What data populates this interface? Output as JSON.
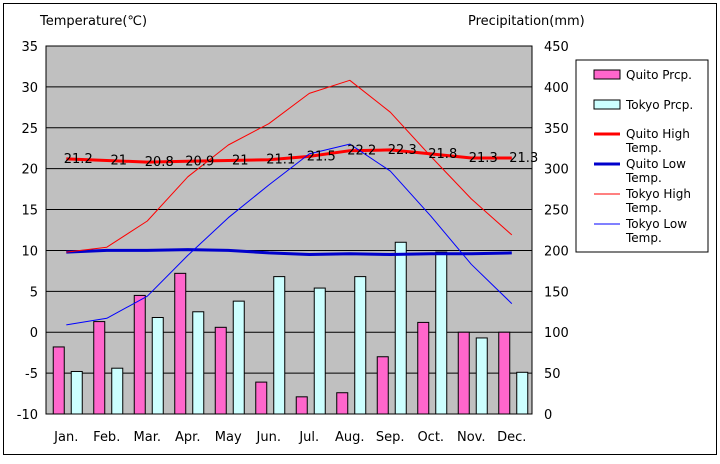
{
  "chart_data": {
    "type": "bar",
    "y_left_title": "Temperature(℃)",
    "y_right_title": "Precipitation(mm)",
    "categories": [
      "Jan.",
      "Feb.",
      "Mar.",
      "Apr.",
      "May",
      "Jun.",
      "Jul.",
      "Aug.",
      "Sep.",
      "Oct.",
      "Nov.",
      "Dec."
    ],
    "left_axis": {
      "ylim": [
        -10,
        35
      ],
      "ticks": [
        "-10",
        "-5",
        "0",
        "5",
        "10",
        "15",
        "20",
        "25",
        "30",
        "35"
      ]
    },
    "right_axis": {
      "ylim": [
        0,
        450
      ],
      "ticks": [
        "0",
        "50",
        "100",
        "150",
        "200",
        "250",
        "300",
        "350",
        "400",
        "450"
      ]
    },
    "grid": true,
    "legend_position": "right",
    "series": [
      {
        "name": "Quito Prcp.",
        "kind": "bar",
        "axis": "right",
        "color": "#ff66cc",
        "values": [
          82,
          113,
          145,
          172,
          106,
          39,
          21,
          26,
          70,
          112,
          100,
          100
        ]
      },
      {
        "name": "Tokyo Prcp.",
        "kind": "bar",
        "axis": "right",
        "color": "#ccffff",
        "values": [
          52,
          56,
          118,
          125,
          138,
          168,
          154,
          168,
          210,
          198,
          93,
          51
        ]
      },
      {
        "name": "Quito High Temp.",
        "kind": "line",
        "axis": "left",
        "color": "#ff0000",
        "width": "thick",
        "values": [
          21.2,
          21,
          20.8,
          20.9,
          21,
          21.1,
          21.5,
          22.2,
          22.3,
          21.8,
          21.3,
          21.3
        ],
        "labels": [
          "21.2",
          "21",
          "20.8",
          "20.9",
          "21",
          "21.1",
          "21.5",
          "22.2",
          "22.3",
          "21.8",
          "21.3",
          "21.3"
        ]
      },
      {
        "name": "Quito Low Temp.",
        "kind": "line",
        "axis": "left",
        "color": "#0000cc",
        "width": "thick",
        "values": [
          9.8,
          10,
          10,
          10.1,
          10,
          9.7,
          9.5,
          9.6,
          9.5,
          9.6,
          9.6,
          9.7
        ]
      },
      {
        "name": "Tokyo High Temp.",
        "kind": "line",
        "axis": "left",
        "color": "#ff0000",
        "width": "thin",
        "values": [
          9.8,
          10.4,
          13.6,
          19,
          22.9,
          25.5,
          29.2,
          30.8,
          26.9,
          21.5,
          16.3,
          11.9
        ]
      },
      {
        "name": "Tokyo Low Temp.",
        "kind": "line",
        "axis": "left",
        "color": "#0000ff",
        "width": "thin",
        "values": [
          0.9,
          1.7,
          4.4,
          9.4,
          14,
          18,
          21.8,
          23,
          19.7,
          14.2,
          8.3,
          3.5
        ]
      }
    ]
  }
}
